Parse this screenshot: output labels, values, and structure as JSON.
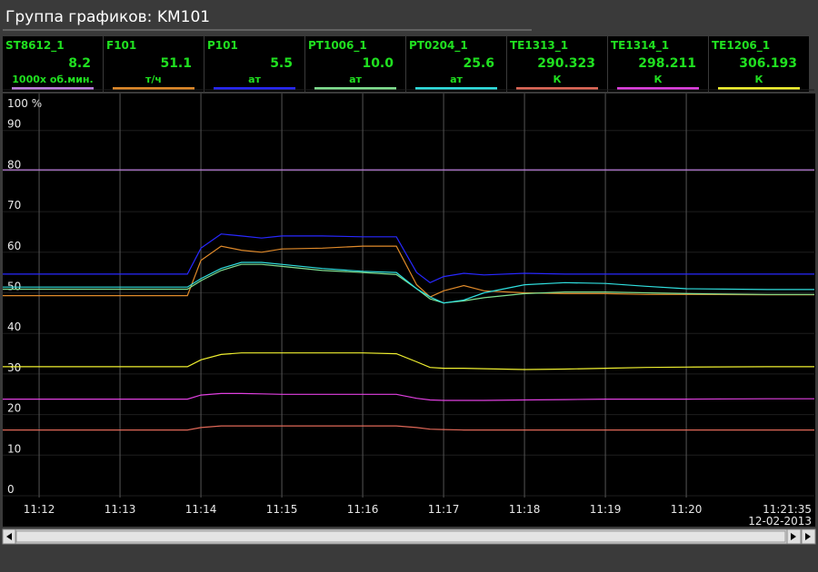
{
  "window_title": "Группа графиков: KM101",
  "chart_data": {
    "type": "line",
    "x": [
      "11:11:33",
      "11:12:00",
      "11:13:00",
      "11:13:50",
      "11:14:00",
      "11:14:15",
      "11:14:30",
      "11:14:45",
      "11:15:00",
      "11:15:30",
      "11:16:00",
      "11:16:25",
      "11:16:40",
      "11:16:50",
      "11:17:00",
      "11:17:15",
      "11:17:30",
      "11:18:00",
      "11:18:30",
      "11:19:00",
      "11:19:30",
      "11:20:00",
      "11:21:00",
      "11:21:35"
    ],
    "xlim": [
      "11:11:33",
      "11:21:35"
    ],
    "xticks": [
      "11:12",
      "11:13",
      "11:14",
      "11:15",
      "11:16",
      "11:17",
      "11:18",
      "11:19",
      "11:20",
      "11:21:35"
    ],
    "date": "12-02-2013",
    "ylim": [
      0,
      100
    ],
    "yticks": [
      0,
      10,
      20,
      30,
      40,
      50,
      60,
      70,
      80,
      90,
      {
        "value": 100,
        "label": "100 %"
      }
    ],
    "grid": true,
    "series": [
      {
        "name": "ST8612_1",
        "current": "8.2",
        "unit": "1000x об.мин.",
        "color": "#c080e0",
        "values": [
          80.3,
          80.3,
          80.3,
          80.3,
          80.3,
          80.3,
          80.3,
          80.3,
          80.3,
          80.3,
          80.3,
          80.3,
          80.3,
          80.3,
          80.3,
          80.3,
          80.3,
          80.3,
          80.3,
          80.3,
          80.3,
          80.3,
          80.3,
          80.3
        ]
      },
      {
        "name": "F101",
        "current": "51.1",
        "unit": "т/ч",
        "color": "#e08a2a",
        "values": [
          49.3,
          49.3,
          49.3,
          49.3,
          58,
          61.5,
          60.5,
          60,
          60.8,
          61,
          61.5,
          61.5,
          52,
          49,
          50.5,
          51.8,
          50.5,
          50,
          49.8,
          49.8,
          49.6,
          49.6,
          49.5,
          49.5
        ]
      },
      {
        "name": "P101",
        "current": "5.5",
        "unit": "ат",
        "color": "#2828ff",
        "values": [
          54.6,
          54.6,
          54.6,
          54.6,
          61,
          64.5,
          64,
          63.5,
          64,
          64,
          63.8,
          63.8,
          55,
          52.5,
          54,
          54.8,
          54.4,
          54.8,
          54.6,
          54.6,
          54.6,
          54.6,
          54.6,
          54.6
        ]
      },
      {
        "name": "PT1006_1",
        "current": "10.0",
        "unit": "ат",
        "color": "#80e090",
        "values": [
          50.9,
          50.9,
          50.9,
          50.9,
          53,
          55.5,
          57,
          57,
          56.5,
          55.5,
          55,
          54.5,
          51,
          48.5,
          47.5,
          48,
          48.8,
          49.8,
          50.2,
          50.2,
          50,
          49.8,
          49.6,
          49.6
        ]
      },
      {
        "name": "PT0204_1",
        "current": "25.6",
        "unit": "ат",
        "color": "#30e0e0",
        "values": [
          51.4,
          51.4,
          51.4,
          51.4,
          53.5,
          56,
          57.5,
          57.5,
          57,
          56,
          55.3,
          55,
          51,
          49,
          47.5,
          48.2,
          50,
          52,
          52.5,
          52.3,
          51.6,
          51,
          50.8,
          50.8
        ]
      },
      {
        "name": "TE1313_1",
        "current": "290.323",
        "unit": "К",
        "color": "#e06858",
        "values": [
          16.2,
          16.2,
          16.2,
          16.2,
          16.8,
          17.2,
          17.2,
          17.2,
          17.2,
          17.2,
          17.2,
          17.2,
          16.8,
          16.4,
          16.3,
          16.2,
          16.2,
          16.2,
          16.2,
          16.2,
          16.2,
          16.2,
          16.2,
          16.2
        ]
      },
      {
        "name": "TE1314_1",
        "current": "298.211",
        "unit": "К",
        "color": "#e040e0",
        "values": [
          23.8,
          23.8,
          23.8,
          23.8,
          24.8,
          25.2,
          25.2,
          25.1,
          25,
          25,
          25,
          25,
          24,
          23.6,
          23.5,
          23.5,
          23.5,
          23.6,
          23.7,
          23.8,
          23.8,
          23.8,
          23.9,
          23.9
        ]
      },
      {
        "name": "TE1206_1",
        "current": "306.193",
        "unit": "К",
        "color": "#f0f030",
        "values": [
          31.8,
          31.8,
          31.8,
          31.8,
          33.5,
          34.8,
          35.2,
          35.2,
          35.2,
          35.2,
          35.2,
          35,
          33,
          31.6,
          31.4,
          31.4,
          31.3,
          31.1,
          31.2,
          31.4,
          31.6,
          31.7,
          31.8,
          31.8
        ]
      }
    ]
  }
}
